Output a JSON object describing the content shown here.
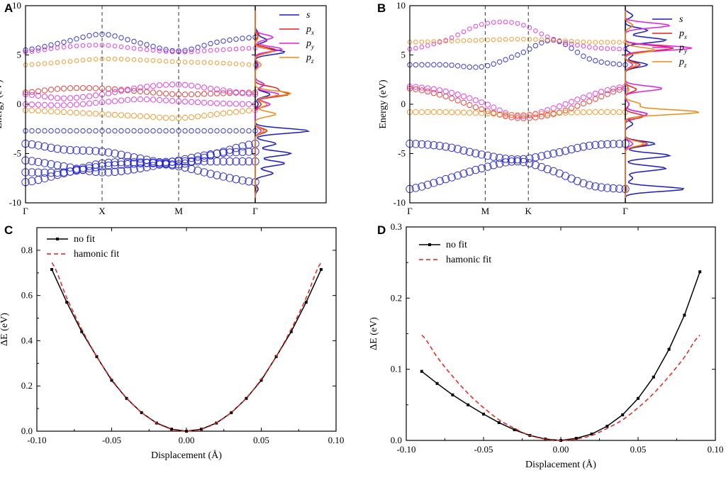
{
  "panels": {
    "A": "A",
    "B": "B",
    "C": "C",
    "D": "D"
  },
  "colors": {
    "s": "#1a1acc",
    "px": "#e8201a",
    "py": "#e020e0",
    "pz": "#f08a10",
    "nofit": "#000000",
    "fit": "#e8201a"
  },
  "chart_data": [
    {
      "id": "A",
      "type": "scatter",
      "title": "",
      "xlabel": "",
      "ylabel": "Energy (eV)",
      "ylim": [
        -10,
        10
      ],
      "yticks": [
        "-10",
        "-5",
        "0",
        "5",
        "10"
      ],
      "xticks": [
        "Γ",
        "X",
        "M",
        "Γ"
      ],
      "legend": [
        {
          "main": "s",
          "sub": ""
        },
        {
          "main": "p",
          "sub": "x"
        },
        {
          "main": "p",
          "sub": "y"
        },
        {
          "main": "p",
          "sub": "z"
        }
      ],
      "bands": [
        {
          "orbital": "s",
          "k": [
            0,
            0.5,
            1,
            1.5,
            2,
            2.5,
            3
          ],
          "e": [
            -7.9,
            -7.0,
            -6.0,
            -5.9,
            -6.3,
            -7.2,
            -7.9
          ]
        },
        {
          "orbital": "s",
          "k": [
            0,
            0.5,
            1,
            1.5,
            2,
            2.5,
            3
          ],
          "e": [
            -6.9,
            -6.9,
            -6.3,
            -6.0,
            -5.8,
            -5.8,
            -5.8
          ]
        },
        {
          "orbital": "s",
          "k": [
            0,
            0.5,
            1,
            1.5,
            2,
            2.5,
            3
          ],
          "e": [
            -5.7,
            -6.3,
            -6.9,
            -6.5,
            -5.7,
            -5.0,
            -4.8
          ]
        },
        {
          "orbital": "s",
          "k": [
            0,
            0.5,
            1,
            1.5,
            2,
            2.5,
            3
          ],
          "e": [
            -4.0,
            -4.6,
            -4.8,
            -5.5,
            -6.1,
            -5.0,
            -4.0
          ]
        },
        {
          "orbital": "s",
          "k": [
            0,
            1,
            2,
            3
          ],
          "e": [
            -2.7,
            -2.7,
            -2.7,
            -2.7
          ]
        },
        {
          "orbital": "s",
          "k": [
            0,
            0.5,
            1,
            1.5,
            2,
            2.5,
            3
          ],
          "e": [
            5.5,
            6.3,
            7.1,
            6.2,
            5.4,
            6.3,
            6.8
          ]
        },
        {
          "orbital": "px",
          "k": [
            0,
            0.5,
            1,
            1.5,
            2,
            2.5,
            3
          ],
          "e": [
            1.2,
            1.6,
            1.6,
            1.3,
            1.0,
            1.1,
            1.2
          ]
        },
        {
          "orbital": "py",
          "k": [
            0,
            0.5,
            1,
            1.5,
            2,
            2.5,
            3
          ],
          "e": [
            1.0,
            0.6,
            1.0,
            1.7,
            2.0,
            1.5,
            1.0
          ]
        },
        {
          "orbital": "py",
          "k": [
            0,
            0.5,
            1,
            1.5,
            2,
            2.5,
            3
          ],
          "e": [
            0.0,
            -0.1,
            0.2,
            0.5,
            0.3,
            0.1,
            0.0
          ]
        },
        {
          "orbital": "py",
          "k": [
            0,
            0.5,
            1,
            1.5,
            2,
            2.5,
            3
          ],
          "e": [
            5.3,
            5.8,
            6.0,
            5.6,
            5.3,
            5.5,
            5.7
          ]
        },
        {
          "orbital": "pz",
          "k": [
            0,
            0.5,
            1,
            1.5,
            2,
            2.5,
            3
          ],
          "e": [
            -0.6,
            -0.8,
            -1.0,
            -1.2,
            -1.4,
            -1.0,
            -0.6
          ]
        },
        {
          "orbital": "pz",
          "k": [
            0,
            0.5,
            1,
            1.5,
            2,
            2.5,
            3
          ],
          "e": [
            4.0,
            4.3,
            4.6,
            4.5,
            4.3,
            4.2,
            4.0
          ]
        }
      ],
      "dos": [
        {
          "orbital": "s",
          "e": [
            -8.6,
            -7.0,
            -6.0,
            -5.0,
            -4.0,
            -2.7,
            0.0,
            1.0,
            2.0,
            4.0,
            5.3,
            6.5,
            7.2
          ],
          "v": [
            0.05,
            0.3,
            0.5,
            0.6,
            0.35,
            0.9,
            0.05,
            0.25,
            0.15,
            0.03,
            0.5,
            0.2,
            0.05
          ]
        },
        {
          "orbital": "px",
          "e": [
            -8.6,
            -2.7,
            0.0,
            1.0,
            1.6,
            4.0,
            5.5,
            7.0
          ],
          "v": [
            0.02,
            0.2,
            0.1,
            0.55,
            0.35,
            0.05,
            0.35,
            0.05
          ]
        },
        {
          "orbital": "py",
          "e": [
            -8.6,
            -2.7,
            0.0,
            1.0,
            2.0,
            4.0,
            5.6,
            6.8
          ],
          "v": [
            0.02,
            0.1,
            0.25,
            0.4,
            0.15,
            0.05,
            0.45,
            0.3
          ]
        },
        {
          "orbital": "pz",
          "e": [
            -8.6,
            -2.7,
            -1.0,
            0.0,
            1.1,
            4.0,
            5.4,
            6.8
          ],
          "v": [
            0.02,
            0.15,
            0.35,
            0.2,
            0.6,
            0.1,
            0.3,
            0.05
          ]
        }
      ]
    },
    {
      "id": "B",
      "type": "scatter",
      "title": "",
      "xlabel": "",
      "ylabel": "Energy (eV)",
      "ylim": [
        -10,
        10
      ],
      "yticks": [
        "-10",
        "-5",
        "0",
        "5",
        "10"
      ],
      "xticks": [
        "Γ",
        "M",
        "K",
        "Γ"
      ],
      "legend": [
        {
          "main": "s",
          "sub": ""
        },
        {
          "main": "p",
          "sub": "x"
        },
        {
          "main": "p",
          "sub": "y"
        },
        {
          "main": "p",
          "sub": "z"
        }
      ],
      "bands": [
        {
          "orbital": "s",
          "k": [
            0,
            0.5,
            1,
            1.5,
            2,
            2.5,
            3
          ],
          "e": [
            -8.6,
            -7.6,
            -6.5,
            -5.8,
            -6.8,
            -8.2,
            -8.6
          ]
        },
        {
          "orbital": "s",
          "k": [
            0,
            0.5,
            1,
            1.5,
            2,
            2.5,
            3
          ],
          "e": [
            -4.0,
            -4.3,
            -5.1,
            -5.6,
            -5.0,
            -4.2,
            -4.0
          ]
        },
        {
          "orbital": "s",
          "k": [
            0,
            0.5,
            1,
            1.5,
            2,
            2.5,
            3
          ],
          "e": [
            4.0,
            4.0,
            3.8,
            5.0,
            6.5,
            4.6,
            4.0
          ]
        },
        {
          "orbital": "py",
          "k": [
            0,
            0.5,
            1,
            1.5,
            2,
            2.5,
            3
          ],
          "e": [
            1.8,
            1.3,
            0.2,
            -1.2,
            -0.4,
            0.9,
            1.8
          ]
        },
        {
          "orbital": "px",
          "k": [
            0,
            0.5,
            1,
            1.5,
            2,
            2.5,
            3
          ],
          "e": [
            1.6,
            0.8,
            -0.5,
            -1.4,
            -1.0,
            0.3,
            1.6
          ]
        },
        {
          "orbital": "py",
          "k": [
            0,
            0.5,
            1,
            1.5,
            2,
            2.5,
            3
          ],
          "e": [
            5.6,
            6.5,
            8.1,
            8.2,
            6.6,
            5.8,
            5.6
          ]
        },
        {
          "orbital": "pz",
          "k": [
            0,
            0.5,
            1,
            1.5,
            2,
            2.5,
            3
          ],
          "e": [
            -0.8,
            -0.8,
            -0.9,
            -1.1,
            -0.9,
            -0.8,
            -0.8
          ]
        },
        {
          "orbital": "pz",
          "k": [
            0,
            0.5,
            1,
            1.5,
            2,
            2.5,
            3
          ],
          "e": [
            6.3,
            6.4,
            6.5,
            6.6,
            6.5,
            6.3,
            6.3
          ]
        }
      ],
      "dos": [
        {
          "orbital": "s",
          "e": [
            -8.6,
            -7.5,
            -6.5,
            -5.2,
            -4.0,
            -2.0,
            -1.0,
            0.0,
            4.0,
            5.0,
            6.5,
            7.5,
            9.0
          ],
          "v": [
            0.8,
            0.1,
            0.55,
            0.6,
            0.4,
            0.1,
            0.3,
            0.05,
            0.3,
            0.1,
            0.55,
            0.3,
            0.1
          ]
        },
        {
          "orbital": "px",
          "e": [
            -8.6,
            -4.0,
            -1.2,
            0.0,
            1.5,
            4.0,
            5.7,
            8.0
          ],
          "v": [
            0.02,
            0.3,
            0.25,
            0.05,
            0.15,
            0.2,
            0.65,
            0.1
          ]
        },
        {
          "orbital": "py",
          "e": [
            -8.6,
            -4.0,
            -1.0,
            0.0,
            1.6,
            4.0,
            5.7,
            8.0
          ],
          "v": [
            0.02,
            0.1,
            0.3,
            0.05,
            0.5,
            0.1,
            0.9,
            0.6
          ]
        },
        {
          "orbital": "pz",
          "e": [
            -8.6,
            -4.0,
            -0.8,
            0.0,
            1.5,
            4.0,
            5.5,
            8.0
          ],
          "v": [
            0.02,
            0.25,
            1.0,
            0.2,
            0.05,
            0.15,
            0.4,
            0.1
          ]
        }
      ]
    },
    {
      "id": "C",
      "type": "line",
      "title": "",
      "xlabel": "Displacement (Å)",
      "ylabel": "ΔE (eV)",
      "xlim": [
        -0.1,
        0.1
      ],
      "ylim": [
        0,
        0.9
      ],
      "xticks": [
        "-0.10",
        "-0.05",
        "0.00",
        "0.05",
        "0.10"
      ],
      "yticks": [
        "0.0",
        "0.2",
        "0.4",
        "0.6",
        "0.8"
      ],
      "legend_position": "top-left",
      "series": [
        {
          "name": "no fit",
          "style": "solid",
          "x": [
            -0.09,
            -0.08,
            -0.07,
            -0.06,
            -0.05,
            -0.04,
            -0.03,
            -0.02,
            -0.01,
            0.0,
            0.01,
            0.02,
            0.03,
            0.04,
            0.05,
            0.06,
            0.07,
            0.08,
            0.09
          ],
          "y": [
            0.715,
            0.57,
            0.44,
            0.33,
            0.225,
            0.145,
            0.082,
            0.036,
            0.009,
            0.0,
            0.009,
            0.036,
            0.082,
            0.145,
            0.225,
            0.33,
            0.44,
            0.57,
            0.715
          ]
        },
        {
          "name": "hamonic fit",
          "style": "dashed",
          "x": [
            -0.09,
            -0.08,
            -0.07,
            -0.06,
            -0.05,
            -0.04,
            -0.03,
            -0.02,
            -0.01,
            0.0,
            0.01,
            0.02,
            0.03,
            0.04,
            0.05,
            0.06,
            0.07,
            0.08,
            0.09
          ],
          "y": [
            0.745,
            0.589,
            0.451,
            0.331,
            0.23,
            0.147,
            0.083,
            0.037,
            0.009,
            0.0,
            0.009,
            0.037,
            0.083,
            0.147,
            0.23,
            0.331,
            0.451,
            0.589,
            0.745
          ]
        }
      ]
    },
    {
      "id": "D",
      "type": "line",
      "title": "",
      "xlabel": "Displacement (Å)",
      "ylabel": "ΔE (eV)",
      "xlim": [
        -0.1,
        0.1
      ],
      "ylim": [
        0,
        0.3
      ],
      "xticks": [
        "-0.10",
        "-0.05",
        "0.00",
        "0.05",
        "0.10"
      ],
      "yticks": [
        "0.0",
        "0.1",
        "0.2",
        "0.3"
      ],
      "legend_position": "top-left",
      "series": [
        {
          "name": "no fit",
          "style": "solid",
          "x": [
            -0.09,
            -0.08,
            -0.07,
            -0.06,
            -0.05,
            -0.04,
            -0.03,
            -0.02,
            -0.01,
            0.0,
            0.01,
            0.02,
            0.03,
            0.04,
            0.05,
            0.06,
            0.07,
            0.08,
            0.09
          ],
          "y": [
            0.097,
            0.08,
            0.064,
            0.05,
            0.037,
            0.025,
            0.015,
            0.007,
            0.002,
            0.0,
            0.003,
            0.009,
            0.02,
            0.036,
            0.059,
            0.089,
            0.128,
            0.176,
            0.237
          ]
        },
        {
          "name": "hamonic fit",
          "style": "dashed",
          "x": [
            -0.09,
            -0.08,
            -0.07,
            -0.06,
            -0.05,
            -0.04,
            -0.03,
            -0.02,
            -0.01,
            0.0,
            0.01,
            0.02,
            0.03,
            0.04,
            0.05,
            0.06,
            0.07,
            0.08,
            0.09
          ],
          "y": [
            0.148,
            0.117,
            0.09,
            0.066,
            0.046,
            0.029,
            0.017,
            0.007,
            0.002,
            0.0,
            0.002,
            0.007,
            0.017,
            0.029,
            0.046,
            0.066,
            0.09,
            0.117,
            0.148
          ]
        }
      ]
    }
  ]
}
